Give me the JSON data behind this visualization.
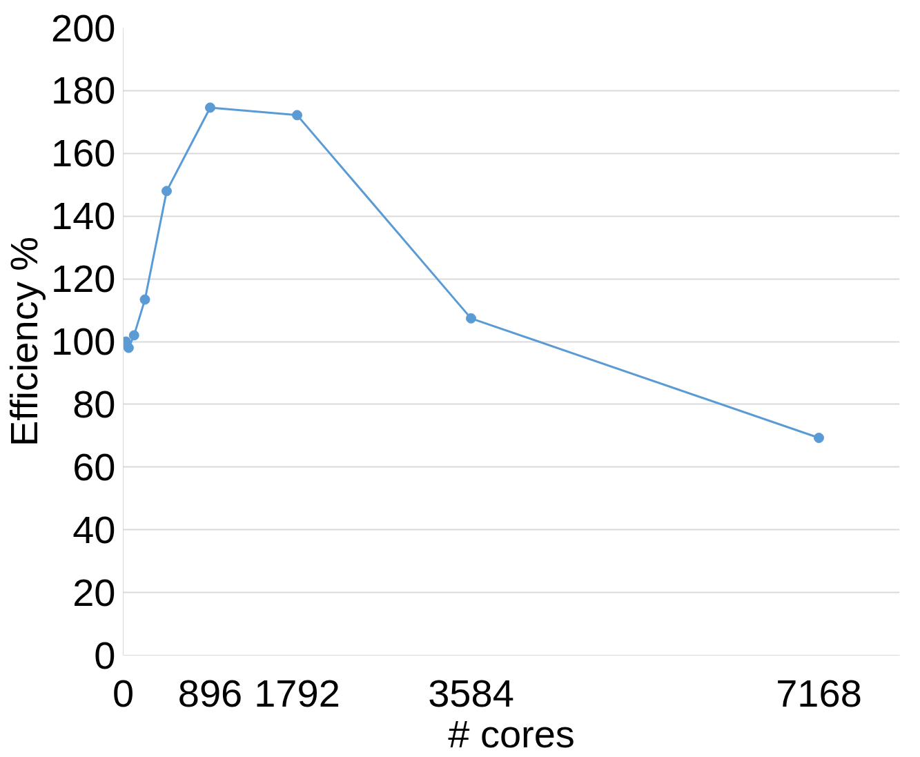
{
  "chart_data": {
    "type": "line",
    "xlabel": "# cores",
    "ylabel": "Efficiency %",
    "x": [
      28,
      56,
      112,
      224,
      448,
      896,
      1792,
      3584,
      7168
    ],
    "series": [
      {
        "color": "#5b9bd5",
        "values": [
          100,
          98,
          102,
          113.4,
          148,
          174.6,
          172.2,
          107.4,
          69.3
        ]
      }
    ],
    "xlim": [
      0,
      8000
    ],
    "xticks": [
      0,
      896,
      1792,
      3584,
      7168
    ],
    "ylim": [
      0,
      200
    ],
    "yticks": [
      0,
      20,
      40,
      60,
      80,
      100,
      120,
      140,
      160,
      180,
      200
    ],
    "grid": "y",
    "marker": "circle",
    "line_style": "solid"
  }
}
